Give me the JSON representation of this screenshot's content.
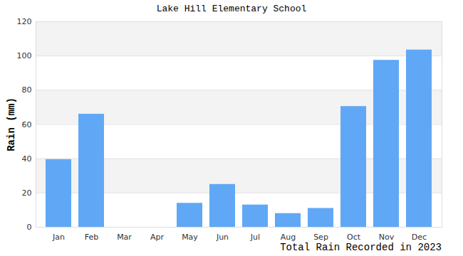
{
  "chart_data": {
    "type": "bar",
    "title": "Lake Hill Elementary School",
    "caption": "Total Rain Recorded in 2023",
    "y_label": "Rain (mm)",
    "categories": [
      "Jan",
      "Feb",
      "Mar",
      "Apr",
      "May",
      "Jun",
      "Jul",
      "Aug",
      "Sep",
      "Oct",
      "Nov",
      "Dec"
    ],
    "values": [
      39.5,
      66,
      0,
      0,
      14,
      25,
      13,
      8,
      11,
      70.5,
      97.5,
      103.5
    ],
    "color": "#60a8f5",
    "ylim": [
      0,
      120
    ],
    "yticks": [
      0,
      20,
      40,
      60,
      80,
      100,
      120
    ],
    "grid": true
  }
}
